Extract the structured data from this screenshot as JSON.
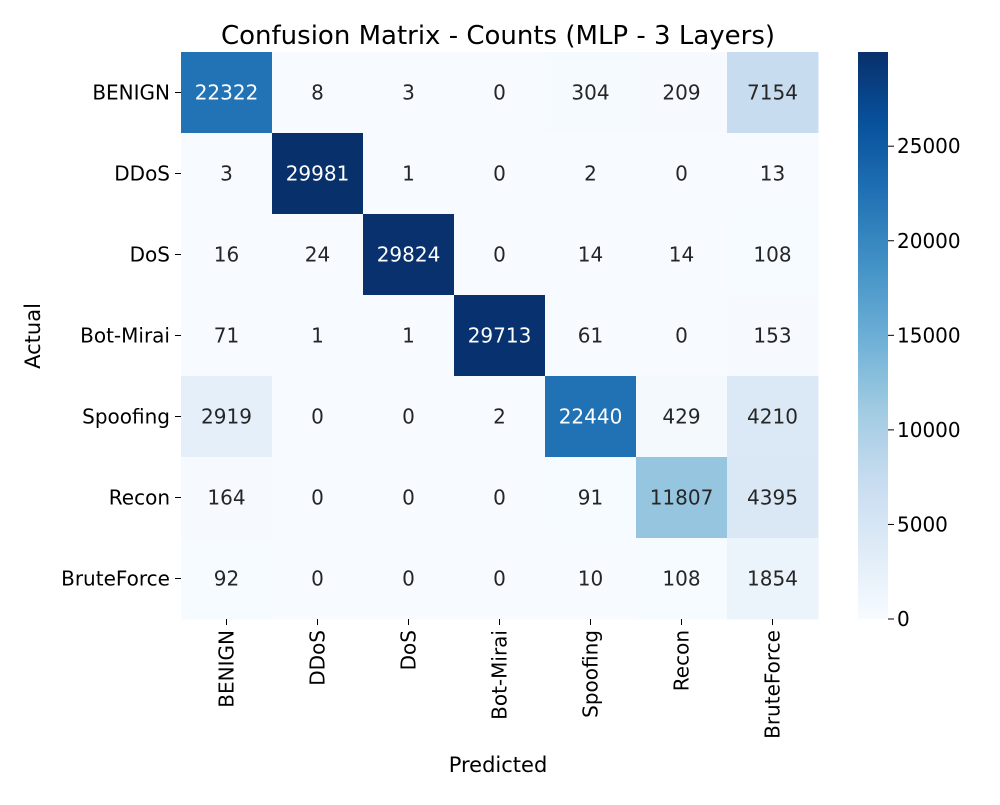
{
  "chart_data": {
    "type": "heatmap",
    "title": "Confusion Matrix - Counts (MLP - 3 Layers)",
    "xlabel": "Predicted",
    "ylabel": "Actual",
    "row_labels": [
      "BENIGN",
      "DDoS",
      "DoS",
      "Bot-Mirai",
      "Spoofing",
      "Recon",
      "BruteForce"
    ],
    "col_labels": [
      "BENIGN",
      "DDoS",
      "DoS",
      "Bot-Mirai",
      "Spoofing",
      "Recon",
      "BruteForce"
    ],
    "values": [
      [
        22322,
        8,
        3,
        0,
        304,
        209,
        7154
      ],
      [
        3,
        29981,
        1,
        0,
        2,
        0,
        13
      ],
      [
        16,
        24,
        29824,
        0,
        14,
        14,
        108
      ],
      [
        71,
        1,
        1,
        29713,
        61,
        0,
        153
      ],
      [
        2919,
        0,
        0,
        2,
        22440,
        429,
        4210
      ],
      [
        164,
        0,
        0,
        0,
        91,
        11807,
        4395
      ],
      [
        92,
        0,
        0,
        0,
        10,
        108,
        1854
      ]
    ],
    "colormap": "Blues",
    "colorbar": {
      "range": [
        0,
        29981
      ],
      "ticks": [
        0,
        5000,
        10000,
        15000,
        20000,
        25000
      ]
    }
  }
}
